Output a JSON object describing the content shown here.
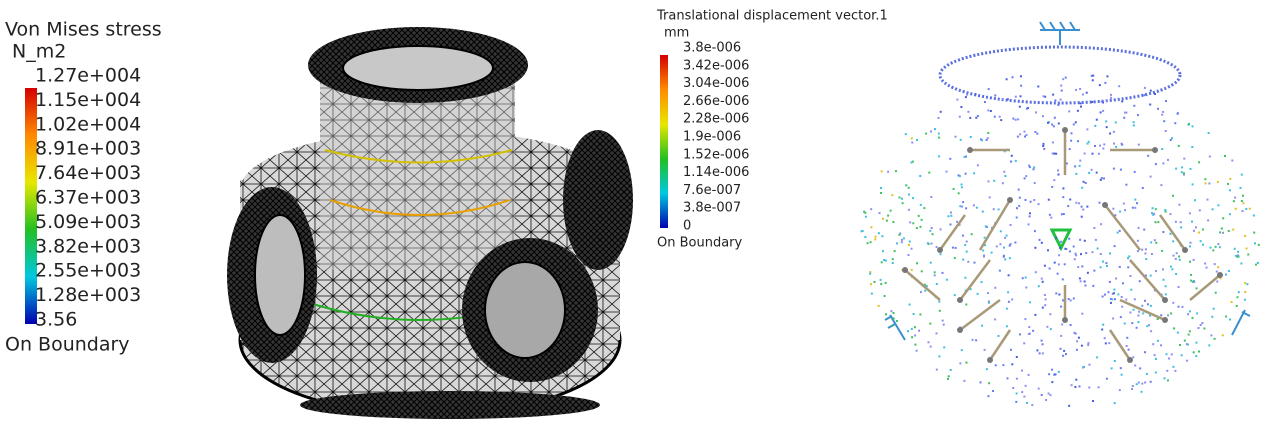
{
  "left_legend": {
    "title": "Von Mises stress",
    "unit": "N_m2",
    "labels": [
      "1.27e+004",
      "1.15e+004",
      "1.02e+004",
      "8.91e+003",
      "7.64e+003",
      "6.37e+003",
      "5.09e+003",
      "3.82e+003",
      "2.55e+003",
      "1.28e+003",
      "3.56"
    ],
    "footer": "On Boundary"
  },
  "right_legend": {
    "title": "Translational displacement vector.1",
    "unit": "mm",
    "labels": [
      "3.8e-006",
      "3.42e-006",
      "3.04e-006",
      "2.66e-006",
      "2.28e-006",
      "1.9e-006",
      "1.52e-006",
      "1.14e-006",
      "7.6e-007",
      "3.8e-007",
      "0"
    ],
    "footer": "On Boundary"
  }
}
